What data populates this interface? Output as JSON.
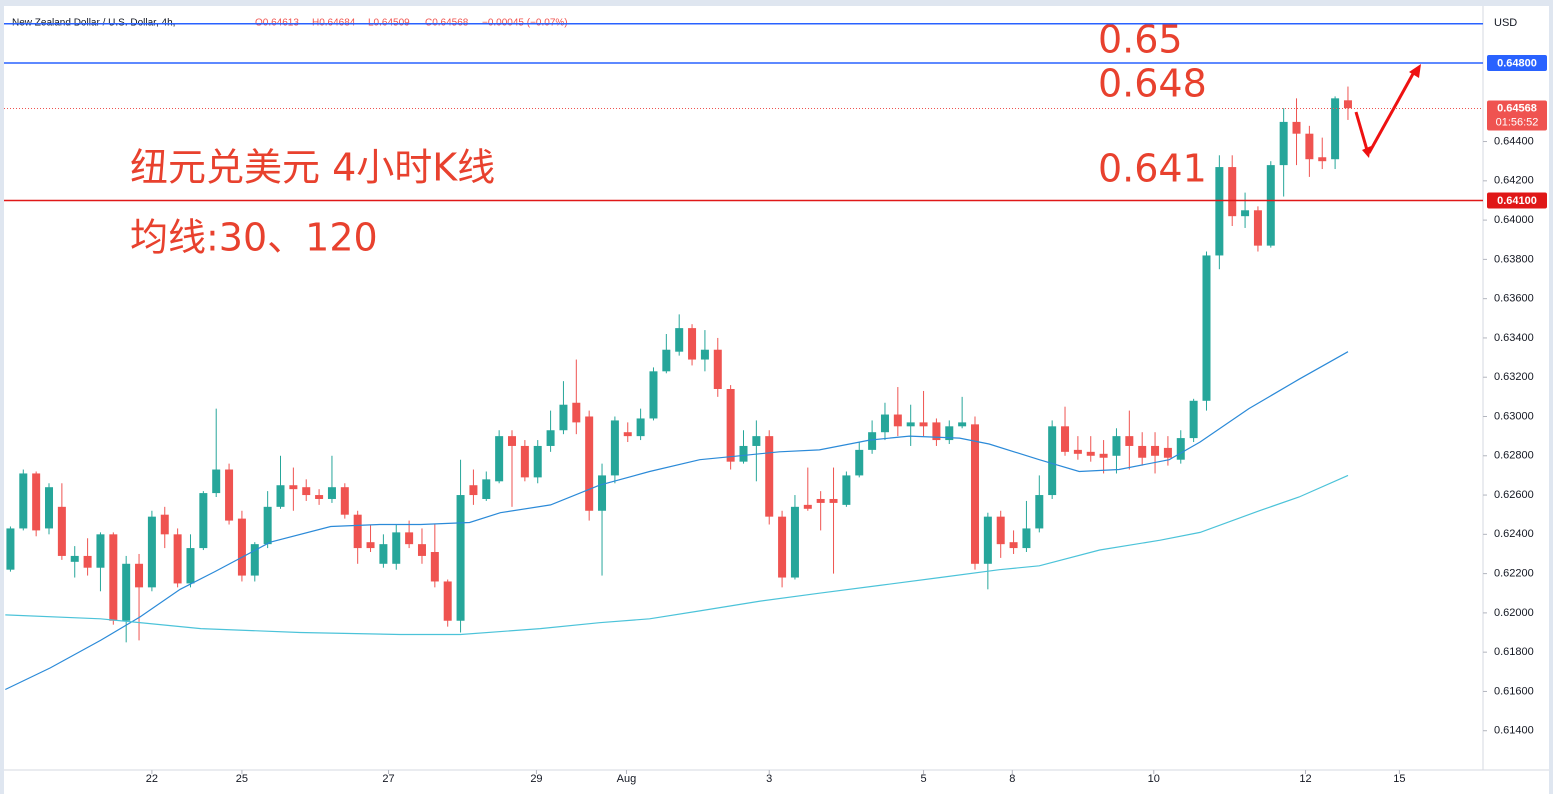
{
  "chart_data": {
    "type": "candlestick",
    "symbol": "New Zealand Dollar / U.S. Dollar, 4h,",
    "ohlc_header": [
      "O0.64613",
      "H0.64684",
      "L0.64509",
      "C0.64568",
      "−0.00045 (−0.07%)"
    ],
    "currency": "USD",
    "up_color": "#26a69a",
    "down_color": "#ef5350",
    "open": [
      0.6222,
      0.6243,
      0.6271,
      0.6243,
      0.6254,
      0.6226,
      0.6229,
      0.6223,
      0.624,
      0.6196,
      0.6225,
      0.6213,
      0.625,
      0.624,
      0.6215,
      0.6233,
      0.6261,
      0.6273,
      0.6248,
      0.6219,
      0.6235,
      0.6254,
      0.6265,
      0.6264,
      0.626,
      0.6258,
      0.6264,
      0.625,
      0.6236,
      0.6225,
      0.6225,
      0.6241,
      0.6235,
      0.6231,
      0.6216,
      0.6196,
      0.6265,
      0.6258,
      0.6267,
      0.629,
      0.6285,
      0.6269,
      0.6285,
      0.6293,
      0.6307,
      0.63,
      0.6252,
      0.627,
      0.6292,
      0.629,
      0.6299,
      0.6323,
      0.6333,
      0.6345,
      0.6329,
      0.6334,
      0.6314,
      0.6277,
      0.6285,
      0.629,
      0.6249,
      0.6218,
      0.6255,
      0.6258,
      0.6258,
      0.6255,
      0.627,
      0.6283,
      0.6292,
      0.6301,
      0.6295,
      0.6297,
      0.6297,
      0.6288,
      0.6295,
      0.6296,
      0.6225,
      0.6249,
      0.6236,
      0.6233,
      0.6243,
      0.626,
      0.6295,
      0.6283,
      0.6282,
      0.6281,
      0.628,
      0.629,
      0.6285,
      0.6285,
      0.6284,
      0.6278,
      0.6289,
      0.6308,
      0.6382,
      0.6427,
      0.6402,
      0.6405,
      0.6387,
      0.6428,
      0.645,
      0.6444,
      0.6432,
      0.6431,
      0.6461
    ],
    "high": [
      0.6244,
      0.6273,
      0.6272,
      0.6266,
      0.6266,
      0.6234,
      0.6238,
      0.6241,
      0.6241,
      0.6229,
      0.623,
      0.6252,
      0.6254,
      0.6243,
      0.624,
      0.6262,
      0.6304,
      0.6276,
      0.6252,
      0.6236,
      0.6262,
      0.628,
      0.6274,
      0.6268,
      0.6263,
      0.628,
      0.6266,
      0.6252,
      0.6245,
      0.624,
      0.6245,
      0.6247,
      0.6243,
      0.6245,
      0.6217,
      0.6278,
      0.6273,
      0.6272,
      0.6293,
      0.6293,
      0.6288,
      0.6288,
      0.6303,
      0.6318,
      0.6329,
      0.6303,
      0.6276,
      0.63,
      0.6297,
      0.6304,
      0.6325,
      0.6342,
      0.6352,
      0.6347,
      0.6344,
      0.634,
      0.6316,
      0.6293,
      0.6298,
      0.6293,
      0.6252,
      0.626,
      0.6274,
      0.6262,
      0.6274,
      0.6272,
      0.6287,
      0.6298,
      0.6307,
      0.6315,
      0.6306,
      0.6313,
      0.6299,
      0.6298,
      0.631,
      0.63,
      0.6251,
      0.6252,
      0.6242,
      0.6257,
      0.627,
      0.6298,
      0.6305,
      0.629,
      0.629,
      0.6288,
      0.6294,
      0.6303,
      0.6292,
      0.6292,
      0.629,
      0.6293,
      0.6309,
      0.6384,
      0.6433,
      0.6433,
      0.6414,
      0.6407,
      0.643,
      0.6457,
      0.6462,
      0.6448,
      0.6442,
      0.6463,
      0.6468
    ],
    "low": [
      0.6221,
      0.6242,
      0.6239,
      0.624,
      0.6227,
      0.6218,
      0.6219,
      0.6211,
      0.6194,
      0.6185,
      0.6186,
      0.6211,
      0.6233,
      0.6213,
      0.6213,
      0.6232,
      0.6259,
      0.6245,
      0.6216,
      0.6216,
      0.6233,
      0.6253,
      0.6252,
      0.6257,
      0.6255,
      0.6256,
      0.6248,
      0.6225,
      0.6231,
      0.6223,
      0.6222,
      0.6233,
      0.6225,
      0.6213,
      0.6193,
      0.619,
      0.6255,
      0.6257,
      0.6266,
      0.6254,
      0.6267,
      0.6266,
      0.6282,
      0.6291,
      0.6291,
      0.6247,
      0.6219,
      0.6266,
      0.6287,
      0.6288,
      0.6298,
      0.6322,
      0.6331,
      0.6326,
      0.6323,
      0.631,
      0.6273,
      0.6276,
      0.6267,
      0.6245,
      0.6213,
      0.6217,
      0.6252,
      0.6242,
      0.622,
      0.6254,
      0.6269,
      0.6281,
      0.6288,
      0.629,
      0.6285,
      0.629,
      0.6285,
      0.6286,
      0.6294,
      0.6222,
      0.6212,
      0.6228,
      0.623,
      0.6231,
      0.6241,
      0.6258,
      0.628,
      0.6278,
      0.6277,
      0.6271,
      0.6271,
      0.6273,
      0.6275,
      0.6271,
      0.6275,
      0.6276,
      0.6287,
      0.6303,
      0.6375,
      0.6397,
      0.6396,
      0.6384,
      0.6386,
      0.6412,
      0.6428,
      0.6422,
      0.6426,
      0.6426,
      0.6451
    ],
    "close": [
      0.6243,
      0.6271,
      0.6242,
      0.6264,
      0.6229,
      0.6229,
      0.6223,
      0.624,
      0.6196,
      0.6225,
      0.6213,
      0.6249,
      0.624,
      0.6215,
      0.6233,
      0.6261,
      0.6273,
      0.6247,
      0.6219,
      0.6235,
      0.6254,
      0.6265,
      0.6263,
      0.626,
      0.6258,
      0.6264,
      0.625,
      0.6233,
      0.6233,
      0.6235,
      0.6241,
      0.6235,
      0.6229,
      0.6216,
      0.6196,
      0.626,
      0.626,
      0.6268,
      0.629,
      0.6285,
      0.6269,
      0.6285,
      0.6293,
      0.6306,
      0.6297,
      0.6252,
      0.627,
      0.6298,
      0.629,
      0.6299,
      0.6323,
      0.6334,
      0.6345,
      0.6329,
      0.6334,
      0.6314,
      0.6277,
      0.6285,
      0.629,
      0.6249,
      0.6218,
      0.6254,
      0.6253,
      0.6256,
      0.6256,
      0.627,
      0.6283,
      0.6292,
      0.6301,
      0.6295,
      0.6297,
      0.6295,
      0.6288,
      0.6295,
      0.6297,
      0.6225,
      0.6249,
      0.6235,
      0.6233,
      0.6243,
      0.626,
      0.6295,
      0.6282,
      0.6281,
      0.628,
      0.6279,
      0.629,
      0.6285,
      0.6279,
      0.628,
      0.6279,
      0.6289,
      0.6308,
      0.6382,
      0.6427,
      0.6402,
      0.6405,
      0.6387,
      0.6428,
      0.645,
      0.6444,
      0.6431,
      0.643,
      0.6462,
      0.6457
    ],
    "lines": [
      {
        "color": "#2b8ad8",
        "x": [
          -0.4,
          3.1,
          7.0,
          10.1,
          13.2,
          15.9,
          20.2,
          24.9,
          28.7,
          31.9,
          35.7,
          38.1,
          42.0,
          45.8,
          49.7,
          53.6,
          56.7,
          59.8,
          62.9,
          66.8,
          69.9,
          73.8,
          76.1,
          80.0,
          83.1,
          86.2,
          90.1,
          92.5,
          96.3,
          100.2,
          104.0
        ],
        "values": [
          0.6161,
          0.6172,
          0.6186,
          0.6198,
          0.6212,
          0.6221,
          0.6236,
          0.6244,
          0.6245,
          0.6245,
          0.6246,
          0.6251,
          0.6255,
          0.6265,
          0.6272,
          0.6278,
          0.628,
          0.6282,
          0.6283,
          0.6288,
          0.629,
          0.6289,
          0.6286,
          0.6278,
          0.6272,
          0.6273,
          0.6278,
          0.6287,
          0.6304,
          0.6319,
          0.6333
        ]
      },
      {
        "color": "#4cc3d9",
        "x": [
          -0.4,
          7.0,
          14.8,
          22.5,
          30.3,
          35.0,
          41.2,
          45.8,
          49.7,
          53.6,
          58.3,
          62.9,
          67.6,
          72.3,
          76.9,
          80.0,
          84.7,
          89.4,
          92.5,
          97.1,
          100.2,
          104.0
        ],
        "values": [
          0.6199,
          0.6197,
          0.6192,
          0.619,
          0.6189,
          0.6189,
          0.6192,
          0.6195,
          0.6197,
          0.6201,
          0.6206,
          0.621,
          0.6214,
          0.6218,
          0.6222,
          0.6224,
          0.6232,
          0.6237,
          0.6241,
          0.6252,
          0.6259,
          0.627
        ]
      }
    ],
    "hlines": [
      {
        "value": 0.65,
        "color": "#2962ff"
      },
      {
        "value": 0.648,
        "label": "0.64800",
        "color": "#2962ff"
      },
      {
        "value": 0.641,
        "label": "0.64100",
        "color": "#e01818"
      }
    ],
    "last_price": 0.64568,
    "countdown": "01:56:52",
    "xlim": [
      -0.5,
      114.5
    ],
    "xticks": [
      {
        "value": 11.0,
        "label": "22"
      },
      {
        "value": 18.0,
        "label": "25"
      },
      {
        "value": 29.4,
        "label": "27"
      },
      {
        "value": 40.9,
        "label": "29"
      },
      {
        "value": 47.9,
        "label": "Aug"
      },
      {
        "value": 59.0,
        "label": "3"
      },
      {
        "value": 71.0,
        "label": "5"
      },
      {
        "value": 77.9,
        "label": "8"
      },
      {
        "value": 88.9,
        "label": "10"
      },
      {
        "value": 100.7,
        "label": "12"
      },
      {
        "value": 108.0,
        "label": "15"
      }
    ],
    "ylim": [
      0.612,
      0.6508
    ],
    "yticks": [
      {
        "value": 0.614,
        "label": "0.61400"
      },
      {
        "value": 0.616,
        "label": "0.61600"
      },
      {
        "value": 0.618,
        "label": "0.61800"
      },
      {
        "value": 0.62,
        "label": "0.62000"
      },
      {
        "value": 0.622,
        "label": "0.62200"
      },
      {
        "value": 0.624,
        "label": "0.62400"
      },
      {
        "value": 0.626,
        "label": "0.62600"
      },
      {
        "value": 0.628,
        "label": "0.62800"
      },
      {
        "value": 0.63,
        "label": "0.63000"
      },
      {
        "value": 0.632,
        "label": "0.63200"
      },
      {
        "value": 0.634,
        "label": "0.63400"
      },
      {
        "value": 0.636,
        "label": "0.63600"
      },
      {
        "value": 0.638,
        "label": "0.63800"
      },
      {
        "value": 0.64,
        "label": "0.64000"
      },
      {
        "value": 0.642,
        "label": "0.64200"
      },
      {
        "value": 0.644,
        "label": "0.64400"
      }
    ],
    "annotations": [
      "0.65",
      "0.648",
      "0.641",
      "纽元兑美元 4小时K线",
      "均线:30、120"
    ]
  }
}
